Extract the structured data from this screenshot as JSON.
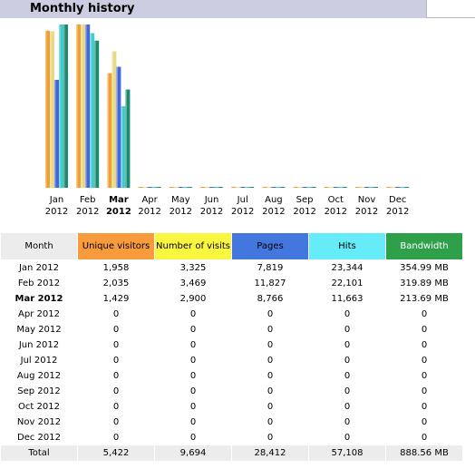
{
  "header": {
    "title": "Monthly history"
  },
  "chart_data": {
    "type": "bar",
    "categories": [
      "Jan 2012",
      "Feb 2012",
      "Mar 2012",
      "Apr 2012",
      "May 2012",
      "Jun 2012",
      "Jul 2012",
      "Aug 2012",
      "Sep 2012",
      "Oct 2012",
      "Nov 2012",
      "Dec 2012"
    ],
    "month_labels": [
      "Jan",
      "Feb",
      "Mar",
      "Apr",
      "May",
      "Jun",
      "Jul",
      "Aug",
      "Sep",
      "Oct",
      "Nov",
      "Dec"
    ],
    "year_label": "2012",
    "current_index": 2,
    "series": [
      {
        "name": "Unique visitors",
        "color": "#f0a030",
        "values": [
          1958,
          2035,
          1429,
          0,
          0,
          0,
          0,
          0,
          0,
          0,
          0,
          0
        ]
      },
      {
        "name": "Number of visits",
        "color": "#e8d88a",
        "values": [
          3325,
          3469,
          2900,
          0,
          0,
          0,
          0,
          0,
          0,
          0,
          0,
          0
        ]
      },
      {
        "name": "Pages",
        "color": "#4466dd",
        "values": [
          7819,
          11827,
          8766,
          0,
          0,
          0,
          0,
          0,
          0,
          0,
          0,
          0
        ]
      },
      {
        "name": "Hits",
        "color": "#44cccc",
        "values": [
          23344,
          22101,
          11663,
          0,
          0,
          0,
          0,
          0,
          0,
          0,
          0,
          0
        ]
      },
      {
        "name": "Bandwidth",
        "color": "#1a8a70",
        "values": [
          354.99,
          319.89,
          213.69,
          0,
          0,
          0,
          0,
          0,
          0,
          0,
          0,
          0
        ]
      }
    ]
  },
  "table": {
    "headers": [
      "Month",
      "Unique visitors",
      "Number of visits",
      "Pages",
      "Hits",
      "Bandwidth"
    ],
    "header_colors": [
      "#ececec",
      "#f89b3c",
      "#f8f63e",
      "#4477dd",
      "#66ecf8",
      "#2ea04a"
    ],
    "rows": [
      [
        "Jan 2012",
        "1,958",
        "3,325",
        "7,819",
        "23,344",
        "354.99 MB"
      ],
      [
        "Feb 2012",
        "2,035",
        "3,469",
        "11,827",
        "22,101",
        "319.89 MB"
      ],
      [
        "Mar 2012",
        "1,429",
        "2,900",
        "8,766",
        "11,663",
        "213.69 MB"
      ],
      [
        "Apr 2012",
        "0",
        "0",
        "0",
        "0",
        "0"
      ],
      [
        "May 2012",
        "0",
        "0",
        "0",
        "0",
        "0"
      ],
      [
        "Jun 2012",
        "0",
        "0",
        "0",
        "0",
        "0"
      ],
      [
        "Jul 2012",
        "0",
        "0",
        "0",
        "0",
        "0"
      ],
      [
        "Aug 2012",
        "0",
        "0",
        "0",
        "0",
        "0"
      ],
      [
        "Sep 2012",
        "0",
        "0",
        "0",
        "0",
        "0"
      ],
      [
        "Oct 2012",
        "0",
        "0",
        "0",
        "0",
        "0"
      ],
      [
        "Nov 2012",
        "0",
        "0",
        "0",
        "0",
        "0"
      ],
      [
        "Dec 2012",
        "0",
        "0",
        "0",
        "0",
        "0"
      ]
    ],
    "total": [
      "Total",
      "5,422",
      "9,694",
      "28,412",
      "57,108",
      "888.56 MB"
    ]
  }
}
